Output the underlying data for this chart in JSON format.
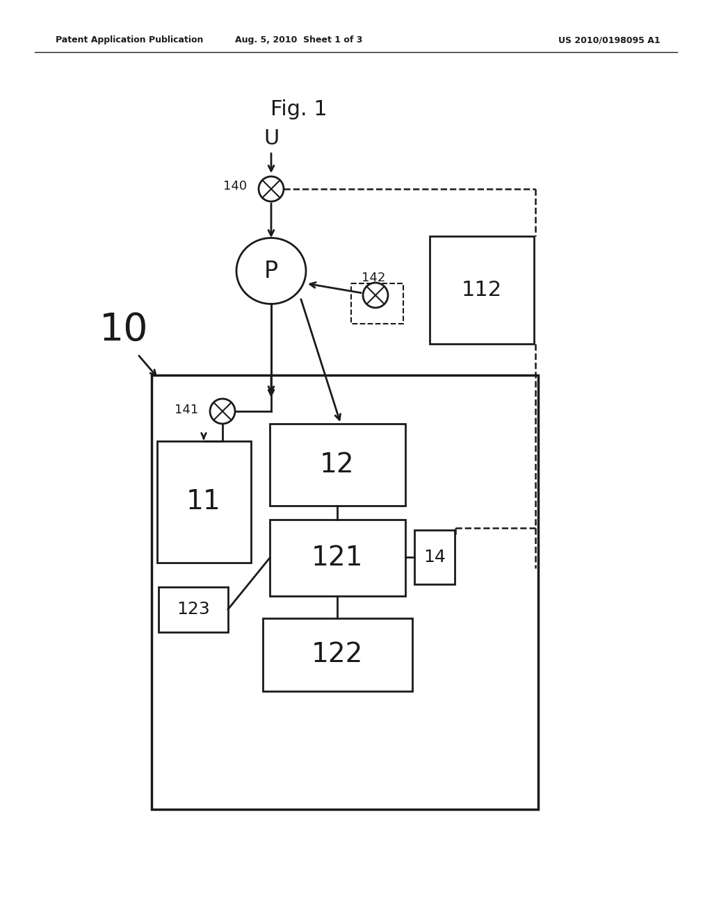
{
  "title": "Fig. 1",
  "header_left": "Patent Application Publication",
  "header_center": "Aug. 5, 2010  Sheet 1 of 3",
  "header_right": "US 2010/0198095 A1",
  "bg_color": "#ffffff",
  "line_color": "#1a1a1a",
  "font_color": "#1a1a1a",
  "label_10": "10",
  "label_11": "11",
  "label_12": "12",
  "label_121": "121",
  "label_122": "122",
  "label_123": "123",
  "label_112": "112",
  "label_14": "14",
  "label_140": "140",
  "label_141": "141",
  "label_142": "142",
  "label_P": "P",
  "label_U": "U"
}
